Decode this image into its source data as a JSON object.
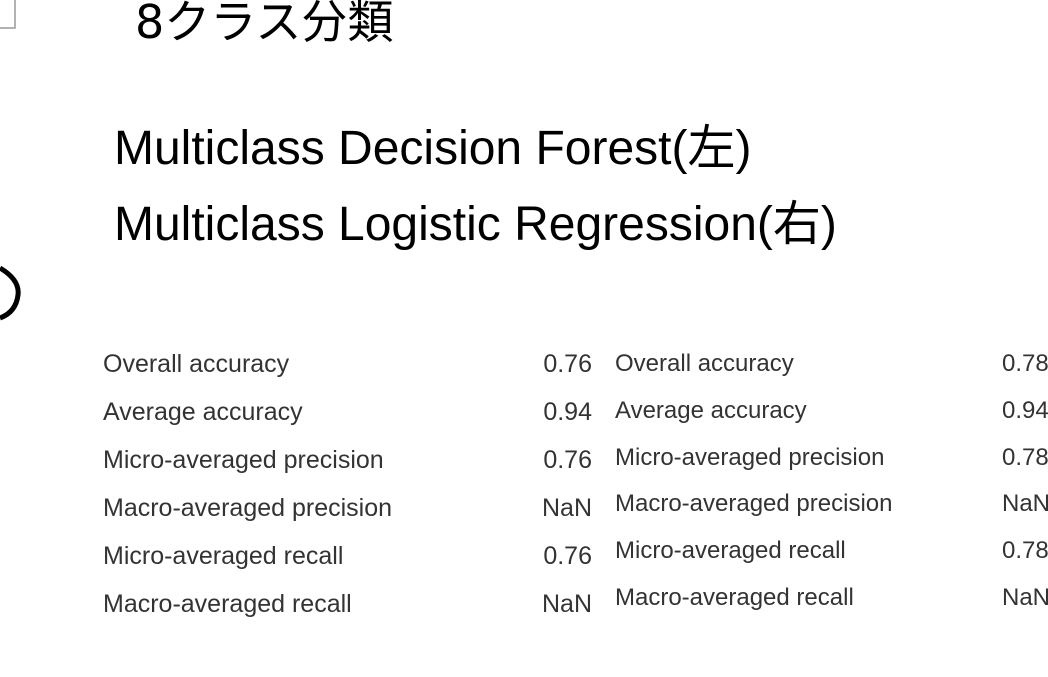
{
  "header": {
    "title": "8クラス分類",
    "lines": [
      "Multiclass Decision Forest(左)",
      "Multiclass Logistic Regression(右)"
    ]
  },
  "tables": [
    {
      "rows": [
        [
          "Overall accuracy",
          "0.76"
        ],
        [
          "Average accuracy",
          "0.94"
        ],
        [
          "Micro-averaged precision",
          "0.76"
        ],
        [
          "Macro-averaged precision",
          "NaN"
        ],
        [
          "Micro-averaged recall",
          "0.76"
        ],
        [
          "Macro-averaged recall",
          "NaN"
        ]
      ]
    },
    {
      "rows": [
        [
          "Overall accuracy",
          "0.78"
        ],
        [
          "Average accuracy",
          "0.94"
        ],
        [
          "Micro-averaged precision",
          "0.78"
        ],
        [
          "Macro-averaged precision",
          "NaN"
        ],
        [
          "Micro-averaged recall",
          "0.78"
        ],
        [
          "Macro-averaged recall",
          "NaN"
        ]
      ]
    }
  ]
}
